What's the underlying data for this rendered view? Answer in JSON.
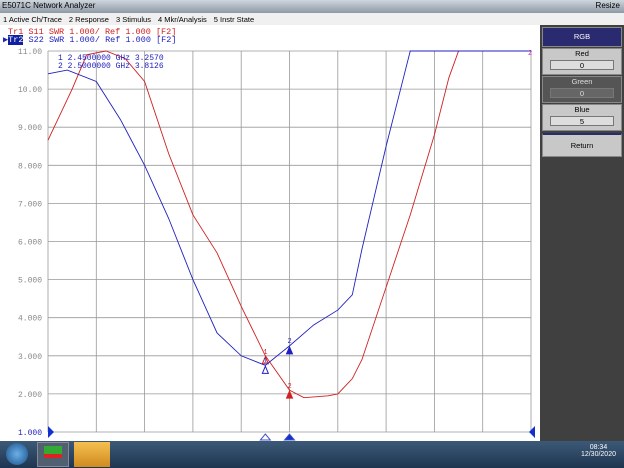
{
  "window": {
    "title": "E5071C Network Analyzer",
    "resize": "Resize"
  },
  "menu": [
    "1 Active Ch/Trace",
    "2 Response",
    "3 Stimulus",
    "4 Mkr/Analysis",
    "5 Instr State"
  ],
  "traces": {
    "tr1": {
      "name": "Tr1",
      "param": "S11",
      "text": "SWR 1.000/ Ref 1.000 [F2]",
      "color": "#d02020"
    },
    "tr2": {
      "name": "Tr2",
      "param": "S22",
      "text": "SWR 1.000/ Ref 1.000 [F2]",
      "color": "#2020c0"
    }
  },
  "markers": [
    {
      "num": "1",
      "freq": "2.4500000 GHz",
      "value": "3.2570"
    },
    {
      "num": "2",
      "freq": "2.5000000 GHz",
      "value": "3.8126"
    }
  ],
  "panel": {
    "title": "RGB",
    "red_label": "Red",
    "red_value": "0",
    "green_label": "Green",
    "green_value": "0",
    "blue_label": "Blue",
    "blue_value": "5",
    "return_label": "Return"
  },
  "taskbar": {
    "time": "08:34",
    "date": "12/30/2020"
  },
  "chart_data": {
    "type": "line",
    "ylim": [
      1,
      11
    ],
    "xlim": [
      0,
      10
    ],
    "grid": true,
    "yticks": [
      "11.00",
      "10.00",
      "9.000",
      "8.000",
      "7.000",
      "6.000",
      "5.000",
      "4.000",
      "3.000",
      "2.000",
      "1.000"
    ],
    "series": [
      {
        "name": "Tr1 S11",
        "color": "#d02020",
        "x": [
          0,
          0.5,
          0.8,
          1.2,
          1.6,
          2,
          2.5,
          3,
          3.5,
          4,
          4.5,
          5,
          5.3,
          5.8,
          6,
          6.3,
          6.5,
          7,
          7.5,
          8,
          8.3,
          8.5,
          10
        ],
        "y": [
          8.66,
          10.0,
          10.9,
          11.0,
          10.8,
          10.2,
          8.3,
          6.7,
          5.7,
          4.3,
          3.0,
          2.1,
          1.9,
          1.95,
          2.0,
          2.4,
          2.9,
          4.8,
          6.7,
          8.8,
          10.3,
          11.0,
          11.0
        ]
      },
      {
        "name": "Tr2 S22",
        "color": "#2020c0",
        "x": [
          0,
          0.4,
          1,
          1.5,
          2,
          2.5,
          3,
          3.5,
          4,
          4.5,
          5,
          5.5,
          6,
          6.3,
          6.5,
          7,
          7.4,
          7.5,
          10
        ],
        "y": [
          10.4,
          10.5,
          10.2,
          9.2,
          8.0,
          6.6,
          5.0,
          3.6,
          3.0,
          2.75,
          3.26,
          3.81,
          4.2,
          4.6,
          5.8,
          8.5,
          10.5,
          11.0,
          11.0
        ]
      }
    ],
    "marker_x": [
      4.5,
      5
    ]
  }
}
